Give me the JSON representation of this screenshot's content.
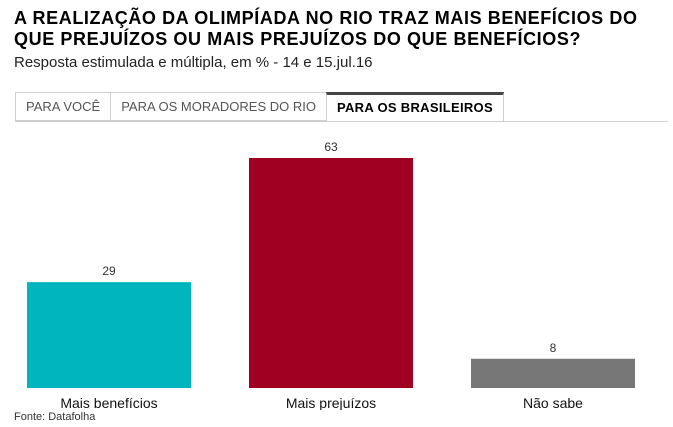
{
  "title": "A REALIZAÇÃO DA OLIMPÍADA NO RIO TRAZ MAIS BENEFÍCIOS DO QUE PREJUÍZOS OU MAIS PREJUÍZOS DO QUE BENEFÍCIOS?",
  "subtitle": "Resposta estimulada e múltipla, em % - 14 e 15.jul.16",
  "tabs": [
    {
      "label": "PARA VOCÊ",
      "active": false
    },
    {
      "label": "PARA OS MORADORES DO RIO",
      "active": false
    },
    {
      "label": "PARA OS BRASILEIROS",
      "active": true
    }
  ],
  "source": "Fonte: Datafolha",
  "chart_data": {
    "type": "bar",
    "categories": [
      "Mais benefícios",
      "Mais prejuízos",
      "Não sabe"
    ],
    "values": [
      29,
      63,
      8
    ],
    "colors": [
      "#00b5bd",
      "#a00021",
      "#777777"
    ],
    "ylim": [
      0,
      63
    ],
    "grid": false,
    "title": "",
    "xlabel": "",
    "ylabel": ""
  }
}
